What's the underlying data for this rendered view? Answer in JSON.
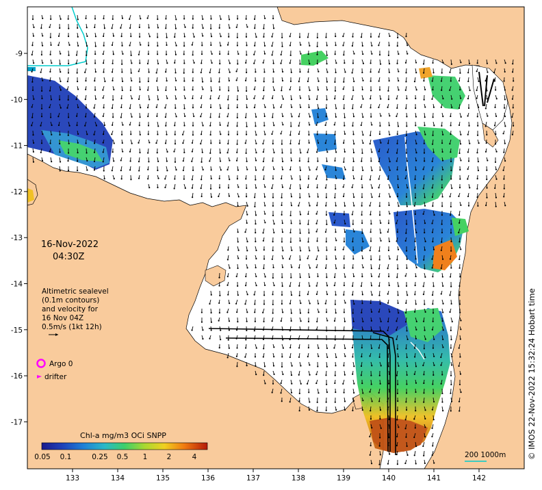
{
  "map": {
    "date": "16-Nov-2022",
    "time": "04:30Z",
    "legend": {
      "line1": "Altimetric sealevel",
      "line2": "(0.1m contours)",
      "line3": "and velocity for",
      "line4": "16 Nov 04Z",
      "line5": "0.5m/s (1kt 12h)"
    },
    "argo_label": "Argo 0",
    "drifter_label": "drifter",
    "colorbar": {
      "title": "Chl-a mg/m3 OCi SNPP",
      "ticks": [
        "0.05",
        "0.1",
        "0.25",
        "0.5",
        "1",
        "2",
        "4"
      ]
    },
    "scale_label": "200  1000m",
    "credit": "© IMOS 22-Nov-2022 15:32:24 Hobart time",
    "x_ticks": [
      "133",
      "134",
      "135",
      "136",
      "137",
      "138",
      "139",
      "140",
      "141",
      "142"
    ],
    "y_ticks": [
      "-9",
      "-10",
      "-11",
      "-12",
      "-13",
      "-14",
      "-15",
      "-16",
      "-17"
    ],
    "colors": {
      "land": "#f9cb9c",
      "ocean": "#ffffff",
      "arrow": "#000000",
      "argo": "#ff00ff",
      "drifter": "#ff00ff",
      "contour": "#00cccc"
    }
  }
}
